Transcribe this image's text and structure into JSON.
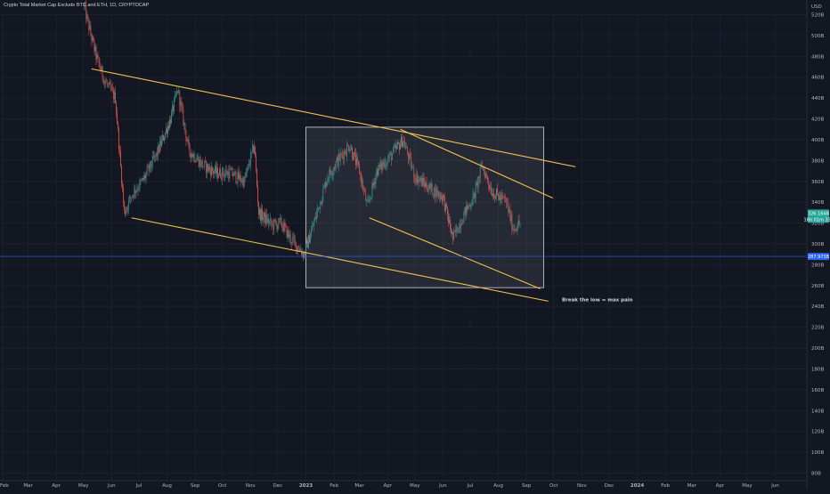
{
  "header": {
    "title": "Crypto Total Market Cap Exclude BTC and ETH, 1D, CRYPTOCAP"
  },
  "chart_data": {
    "type": "candlestick",
    "currency_label": "USD",
    "y_ticks": [
      "520B",
      "500B",
      "480B",
      "460B",
      "440B",
      "420B",
      "400B",
      "380B",
      "360B",
      "340B",
      "320B",
      "300B",
      "280B",
      "260B",
      "240B",
      "220B",
      "200B",
      "180B",
      "160B",
      "140B",
      "120B",
      "100B",
      "80B"
    ],
    "y_tick_values": [
      520,
      500,
      480,
      460,
      440,
      420,
      400,
      380,
      360,
      340,
      320,
      300,
      280,
      260,
      240,
      220,
      200,
      180,
      160,
      140,
      120,
      100,
      80
    ],
    "x_ticks": [
      "Feb",
      "Mar",
      "Apr",
      "May",
      "Jun",
      "Jul",
      "Aug",
      "Sep",
      "Oct",
      "Nov",
      "Dec",
      "2023",
      "Feb",
      "Mar",
      "Apr",
      "May",
      "Jun",
      "Jul",
      "Aug",
      "Sep",
      "Oct",
      "Nov",
      "Dec",
      "2024",
      "Feb",
      "Mar",
      "Apr",
      "May",
      "Jun"
    ],
    "x_tick_bold": [
      "2023",
      "2024"
    ],
    "price_path": [
      {
        "date": "2022-05-01",
        "close": 530
      },
      {
        "date": "2022-05-15",
        "close": 480
      },
      {
        "date": "2022-05-25",
        "close": 455
      },
      {
        "date": "2022-06-05",
        "close": 440
      },
      {
        "date": "2022-06-15",
        "close": 330
      },
      {
        "date": "2022-06-25",
        "close": 350
      },
      {
        "date": "2022-07-05",
        "close": 360
      },
      {
        "date": "2022-07-20",
        "close": 385
      },
      {
        "date": "2022-08-05",
        "close": 420
      },
      {
        "date": "2022-08-13",
        "close": 448
      },
      {
        "date": "2022-08-25",
        "close": 390
      },
      {
        "date": "2022-09-10",
        "close": 375
      },
      {
        "date": "2022-09-25",
        "close": 368
      },
      {
        "date": "2022-10-10",
        "close": 368
      },
      {
        "date": "2022-10-25",
        "close": 360
      },
      {
        "date": "2022-11-05",
        "close": 395
      },
      {
        "date": "2022-11-10",
        "close": 330
      },
      {
        "date": "2022-11-25",
        "close": 318
      },
      {
        "date": "2022-12-05",
        "close": 320
      },
      {
        "date": "2022-12-15",
        "close": 305
      },
      {
        "date": "2022-12-30",
        "close": 290
      },
      {
        "date": "2023-01-10",
        "close": 320
      },
      {
        "date": "2023-01-25",
        "close": 365
      },
      {
        "date": "2023-02-05",
        "close": 380
      },
      {
        "date": "2023-02-18",
        "close": 395
      },
      {
        "date": "2023-03-01",
        "close": 370
      },
      {
        "date": "2023-03-10",
        "close": 335
      },
      {
        "date": "2023-03-20",
        "close": 370
      },
      {
        "date": "2023-04-05",
        "close": 385
      },
      {
        "date": "2023-04-18",
        "close": 400
      },
      {
        "date": "2023-05-01",
        "close": 365
      },
      {
        "date": "2023-05-15",
        "close": 355
      },
      {
        "date": "2023-06-01",
        "close": 345
      },
      {
        "date": "2023-06-12",
        "close": 305
      },
      {
        "date": "2023-06-25",
        "close": 330
      },
      {
        "date": "2023-07-05",
        "close": 345
      },
      {
        "date": "2023-07-14",
        "close": 375
      },
      {
        "date": "2023-07-25",
        "close": 350
      },
      {
        "date": "2023-08-10",
        "close": 340
      },
      {
        "date": "2023-08-17",
        "close": 315
      },
      {
        "date": "2023-08-25",
        "close": 320
      }
    ],
    "price_level": {
      "label": "287.973B",
      "value": 287.97
    },
    "last_price": {
      "label": "326.164B",
      "sub_label": "16h 01m 33s",
      "value": 326.16
    },
    "trendlines": [
      {
        "from": {
          "date": "2022-05-10",
          "value": 468
        },
        "to": {
          "date": "2023-10-25",
          "value": 374
        }
      },
      {
        "from": {
          "date": "2022-06-23",
          "value": 325
        },
        "to": {
          "date": "2023-09-25",
          "value": 245
        }
      },
      {
        "from": {
          "date": "2023-03-12",
          "value": 325
        },
        "to": {
          "date": "2023-09-16",
          "value": 257
        }
      },
      {
        "from": {
          "date": "2023-04-15",
          "value": 410
        },
        "to": {
          "date": "2023-09-30",
          "value": 344
        }
      }
    ],
    "box": {
      "x_start": "2023-01-01",
      "x_end": "2023-09-20",
      "y_top": 412,
      "y_bottom": 258
    },
    "annotation": {
      "text": "Break the low = max pain",
      "date": "2023-10-10",
      "value": 245
    }
  }
}
